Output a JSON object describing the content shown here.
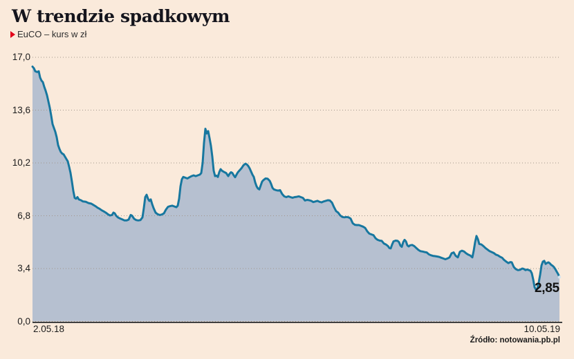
{
  "header": {
    "title": "W trendzie spadkowym",
    "legend": {
      "marker": "red-play-triangle",
      "label": "EuCO – kurs w zł"
    }
  },
  "footer": {
    "source": "Źródło: notowania.pb.pl"
  },
  "colors": {
    "background": "#faeadb",
    "line": "#17779f",
    "fill": "#b6c0d0",
    "accent_red": "#e2001a",
    "grid": "#a0958a",
    "axis": "#3f3f3f",
    "text": "#1b1b1b"
  },
  "chart_data": {
    "type": "area",
    "title": "W trendzie spadkowym",
    "series_name": "EuCO – kurs w zł",
    "unit": "zł",
    "grid": "dotted-horizontal",
    "legend_position": "top-left",
    "x_range": {
      "start": "2.05.18",
      "end": "10.05.19"
    },
    "x_axis": {
      "labels": [
        "2.05.18",
        "10.05.19"
      ]
    },
    "y_axis": {
      "min": 0,
      "max": 17,
      "tick_values": [
        17.0,
        13.6,
        10.2,
        6.8,
        3.4,
        0.0
      ],
      "tick_labels": [
        "17,0",
        "13,6",
        "10,2",
        "6,8",
        "3,4",
        "0,0"
      ]
    },
    "last_value": 2.85,
    "last_value_label": "2,85",
    "points": [
      [
        0,
        16.4
      ],
      [
        0.0026,
        16.3
      ],
      [
        0.0052,
        16.1
      ],
      [
        0.0092,
        16.05
      ],
      [
        0.0118,
        16.1
      ],
      [
        0.0144,
        15.7
      ],
      [
        0.0171,
        15.5
      ],
      [
        0.0197,
        15.4
      ],
      [
        0.0223,
        15.1
      ],
      [
        0.0249,
        14.85
      ],
      [
        0.0276,
        14.55
      ],
      [
        0.0302,
        14.15
      ],
      [
        0.0328,
        13.75
      ],
      [
        0.0354,
        13.25
      ],
      [
        0.0381,
        12.7
      ],
      [
        0.0407,
        12.45
      ],
      [
        0.0433,
        12.2
      ],
      [
        0.0459,
        11.85
      ],
      [
        0.0486,
        11.35
      ],
      [
        0.0512,
        11.1
      ],
      [
        0.0538,
        10.9
      ],
      [
        0.0564,
        10.8
      ],
      [
        0.0591,
        10.75
      ],
      [
        0.0617,
        10.6
      ],
      [
        0.0643,
        10.45
      ],
      [
        0.0669,
        10.3
      ],
      [
        0.0696,
        9.95
      ],
      [
        0.0722,
        9.55
      ],
      [
        0.0748,
        9.0
      ],
      [
        0.0774,
        8.4
      ],
      [
        0.0801,
        7.95
      ],
      [
        0.0827,
        7.9
      ],
      [
        0.0853,
        8.0
      ],
      [
        0.0879,
        7.85
      ],
      [
        0.0919,
        7.8
      ],
      [
        0.0958,
        7.72
      ],
      [
        0.101,
        7.7
      ],
      [
        0.1063,
        7.62
      ],
      [
        0.1115,
        7.58
      ],
      [
        0.1155,
        7.5
      ],
      [
        0.1194,
        7.42
      ],
      [
        0.1234,
        7.32
      ],
      [
        0.1273,
        7.25
      ],
      [
        0.1312,
        7.15
      ],
      [
        0.1352,
        7.08
      ],
      [
        0.1391,
        7.0
      ],
      [
        0.143,
        6.9
      ],
      [
        0.147,
        6.82
      ],
      [
        0.1509,
        6.85
      ],
      [
        0.1535,
        7.0
      ],
      [
        0.1562,
        6.95
      ],
      [
        0.1588,
        6.8
      ],
      [
        0.1627,
        6.68
      ],
      [
        0.1667,
        6.62
      ],
      [
        0.1706,
        6.56
      ],
      [
        0.1745,
        6.5
      ],
      [
        0.1785,
        6.5
      ],
      [
        0.1824,
        6.55
      ],
      [
        0.1864,
        6.85
      ],
      [
        0.189,
        6.8
      ],
      [
        0.1929,
        6.6
      ],
      [
        0.1969,
        6.52
      ],
      [
        0.2008,
        6.5
      ],
      [
        0.2047,
        6.52
      ],
      [
        0.2087,
        6.7
      ],
      [
        0.2113,
        7.3
      ],
      [
        0.2139,
        8.0
      ],
      [
        0.2165,
        8.15
      ],
      [
        0.2192,
        7.9
      ],
      [
        0.2218,
        7.75
      ],
      [
        0.2244,
        7.85
      ],
      [
        0.227,
        7.55
      ],
      [
        0.2297,
        7.3
      ],
      [
        0.2336,
        7.0
      ],
      [
        0.2375,
        6.9
      ],
      [
        0.2415,
        6.85
      ],
      [
        0.2454,
        6.88
      ],
      [
        0.2493,
        6.95
      ],
      [
        0.2533,
        7.2
      ],
      [
        0.2572,
        7.38
      ],
      [
        0.2612,
        7.42
      ],
      [
        0.2651,
        7.45
      ],
      [
        0.269,
        7.4
      ],
      [
        0.273,
        7.35
      ],
      [
        0.2756,
        7.45
      ],
      [
        0.2782,
        7.9
      ],
      [
        0.2808,
        8.7
      ],
      [
        0.2835,
        9.15
      ],
      [
        0.2861,
        9.3
      ],
      [
        0.29,
        9.25
      ],
      [
        0.294,
        9.2
      ],
      [
        0.2979,
        9.28
      ],
      [
        0.3018,
        9.35
      ],
      [
        0.3058,
        9.4
      ],
      [
        0.3097,
        9.35
      ],
      [
        0.3136,
        9.4
      ],
      [
        0.3176,
        9.45
      ],
      [
        0.3202,
        9.55
      ],
      [
        0.3228,
        10.2
      ],
      [
        0.3255,
        11.5
      ],
      [
        0.3281,
        12.4
      ],
      [
        0.3307,
        12.1
      ],
      [
        0.3333,
        12.25
      ],
      [
        0.336,
        11.8
      ],
      [
        0.3386,
        11.3
      ],
      [
        0.3412,
        10.6
      ],
      [
        0.3438,
        9.7
      ],
      [
        0.3465,
        9.35
      ],
      [
        0.3491,
        9.38
      ],
      [
        0.3517,
        9.3
      ],
      [
        0.3543,
        9.6
      ],
      [
        0.357,
        9.8
      ],
      [
        0.3596,
        9.7
      ],
      [
        0.3635,
        9.62
      ],
      [
        0.3675,
        9.55
      ],
      [
        0.3714,
        9.35
      ],
      [
        0.374,
        9.5
      ],
      [
        0.3766,
        9.6
      ],
      [
        0.3793,
        9.55
      ],
      [
        0.3819,
        9.4
      ],
      [
        0.3845,
        9.28
      ],
      [
        0.3871,
        9.45
      ],
      [
        0.3898,
        9.6
      ],
      [
        0.3924,
        9.7
      ],
      [
        0.3963,
        9.85
      ],
      [
        0.4003,
        10.05
      ],
      [
        0.4042,
        10.15
      ],
      [
        0.4068,
        10.1
      ],
      [
        0.4094,
        10.0
      ],
      [
        0.4121,
        9.85
      ],
      [
        0.4147,
        9.65
      ],
      [
        0.4173,
        9.45
      ],
      [
        0.4199,
        9.3
      ],
      [
        0.4226,
        8.95
      ],
      [
        0.4252,
        8.7
      ],
      [
        0.4278,
        8.55
      ],
      [
        0.4304,
        8.5
      ],
      [
        0.4331,
        8.75
      ],
      [
        0.4357,
        9.0
      ],
      [
        0.4383,
        9.1
      ],
      [
        0.4423,
        9.2
      ],
      [
        0.4462,
        9.18
      ],
      [
        0.4501,
        9.05
      ],
      [
        0.4528,
        8.85
      ],
      [
        0.4554,
        8.6
      ],
      [
        0.458,
        8.5
      ],
      [
        0.4619,
        8.45
      ],
      [
        0.4659,
        8.42
      ],
      [
        0.4698,
        8.45
      ],
      [
        0.4738,
        8.2
      ],
      [
        0.4777,
        8.05
      ],
      [
        0.4816,
        8.0
      ],
      [
        0.4856,
        8.05
      ],
      [
        0.4895,
        8.0
      ],
      [
        0.4934,
        7.96
      ],
      [
        0.4974,
        8.0
      ],
      [
        0.5013,
        8.02
      ],
      [
        0.5052,
        8.05
      ],
      [
        0.5092,
        8.0
      ],
      [
        0.5131,
        7.95
      ],
      [
        0.5171,
        7.78
      ],
      [
        0.521,
        7.82
      ],
      [
        0.5249,
        7.8
      ],
      [
        0.5289,
        7.76
      ],
      [
        0.5328,
        7.68
      ],
      [
        0.5367,
        7.72
      ],
      [
        0.5407,
        7.76
      ],
      [
        0.5446,
        7.7
      ],
      [
        0.5486,
        7.66
      ],
      [
        0.5525,
        7.72
      ],
      [
        0.5564,
        7.76
      ],
      [
        0.5604,
        7.8
      ],
      [
        0.5643,
        7.78
      ],
      [
        0.5682,
        7.65
      ],
      [
        0.5722,
        7.35
      ],
      [
        0.5761,
        7.1
      ],
      [
        0.5801,
        7.0
      ],
      [
        0.584,
        6.82
      ],
      [
        0.5879,
        6.72
      ],
      [
        0.5919,
        6.7
      ],
      [
        0.5958,
        6.72
      ],
      [
        0.5997,
        6.7
      ],
      [
        0.6037,
        6.62
      ],
      [
        0.6076,
        6.32
      ],
      [
        0.6115,
        6.22
      ],
      [
        0.6155,
        6.2
      ],
      [
        0.6194,
        6.2
      ],
      [
        0.6234,
        6.15
      ],
      [
        0.6273,
        6.1
      ],
      [
        0.6312,
        6.02
      ],
      [
        0.6352,
        5.8
      ],
      [
        0.6391,
        5.65
      ],
      [
        0.643,
        5.6
      ],
      [
        0.647,
        5.55
      ],
      [
        0.6509,
        5.35
      ],
      [
        0.6549,
        5.25
      ],
      [
        0.6588,
        5.2
      ],
      [
        0.6627,
        5.18
      ],
      [
        0.6667,
        5.02
      ],
      [
        0.6706,
        4.95
      ],
      [
        0.6745,
        4.85
      ],
      [
        0.6772,
        4.72
      ],
      [
        0.6798,
        4.7
      ],
      [
        0.6824,
        4.95
      ],
      [
        0.685,
        5.15
      ],
      [
        0.689,
        5.2
      ],
      [
        0.6929,
        5.18
      ],
      [
        0.6955,
        5.1
      ],
      [
        0.6982,
        4.88
      ],
      [
        0.7008,
        4.8
      ],
      [
        0.7034,
        5.1
      ],
      [
        0.706,
        5.25
      ],
      [
        0.7087,
        5.15
      ],
      [
        0.7113,
        4.9
      ],
      [
        0.7139,
        4.82
      ],
      [
        0.7165,
        4.9
      ],
      [
        0.7205,
        4.92
      ],
      [
        0.7244,
        4.85
      ],
      [
        0.7283,
        4.72
      ],
      [
        0.7323,
        4.6
      ],
      [
        0.7362,
        4.52
      ],
      [
        0.7402,
        4.5
      ],
      [
        0.7441,
        4.46
      ],
      [
        0.748,
        4.44
      ],
      [
        0.752,
        4.32
      ],
      [
        0.7559,
        4.26
      ],
      [
        0.7598,
        4.22
      ],
      [
        0.7638,
        4.2
      ],
      [
        0.7677,
        4.18
      ],
      [
        0.7717,
        4.15
      ],
      [
        0.7756,
        4.1
      ],
      [
        0.7795,
        4.05
      ],
      [
        0.7835,
        4.0
      ],
      [
        0.7874,
        4.05
      ],
      [
        0.7913,
        4.12
      ],
      [
        0.7953,
        4.38
      ],
      [
        0.7992,
        4.44
      ],
      [
        0.8031,
        4.22
      ],
      [
        0.8071,
        4.12
      ],
      [
        0.811,
        4.48
      ],
      [
        0.815,
        4.55
      ],
      [
        0.8189,
        4.5
      ],
      [
        0.8228,
        4.38
      ],
      [
        0.8268,
        4.3
      ],
      [
        0.8307,
        4.24
      ],
      [
        0.8346,
        4.12
      ],
      [
        0.8373,
        4.55
      ],
      [
        0.8399,
        5.1
      ],
      [
        0.8425,
        5.5
      ],
      [
        0.8451,
        5.3
      ],
      [
        0.8478,
        4.98
      ],
      [
        0.8517,
        4.95
      ],
      [
        0.8556,
        4.85
      ],
      [
        0.8596,
        4.72
      ],
      [
        0.8635,
        4.62
      ],
      [
        0.8675,
        4.52
      ],
      [
        0.8714,
        4.46
      ],
      [
        0.8753,
        4.4
      ],
      [
        0.8793,
        4.3
      ],
      [
        0.8832,
        4.25
      ],
      [
        0.8871,
        4.16
      ],
      [
        0.8911,
        4.1
      ],
      [
        0.895,
        3.95
      ],
      [
        0.899,
        3.85
      ],
      [
        0.9029,
        3.75
      ],
      [
        0.9068,
        3.82
      ],
      [
        0.9094,
        3.8
      ],
      [
        0.9134,
        3.5
      ],
      [
        0.9173,
        3.36
      ],
      [
        0.9213,
        3.3
      ],
      [
        0.9252,
        3.32
      ],
      [
        0.9291,
        3.4
      ],
      [
        0.9318,
        3.38
      ],
      [
        0.9357,
        3.3
      ],
      [
        0.9383,
        3.34
      ],
      [
        0.9423,
        3.3
      ],
      [
        0.9449,
        3.26
      ],
      [
        0.9475,
        3.1
      ],
      [
        0.9501,
        2.7
      ],
      [
        0.9528,
        2.2
      ],
      [
        0.9554,
        2.05
      ],
      [
        0.958,
        2.1
      ],
      [
        0.9606,
        2.5
      ],
      [
        0.9633,
        3.0
      ],
      [
        0.9659,
        3.6
      ],
      [
        0.9685,
        3.85
      ],
      [
        0.9711,
        3.9
      ],
      [
        0.9738,
        3.7
      ],
      [
        0.9764,
        3.76
      ],
      [
        0.979,
        3.8
      ],
      [
        0.9816,
        3.74
      ],
      [
        0.9843,
        3.64
      ],
      [
        0.9869,
        3.58
      ],
      [
        0.9895,
        3.5
      ],
      [
        0.9921,
        3.36
      ],
      [
        0.9948,
        3.2
      ],
      [
        0.9974,
        3.05
      ],
      [
        1,
        2.85
      ]
    ]
  }
}
